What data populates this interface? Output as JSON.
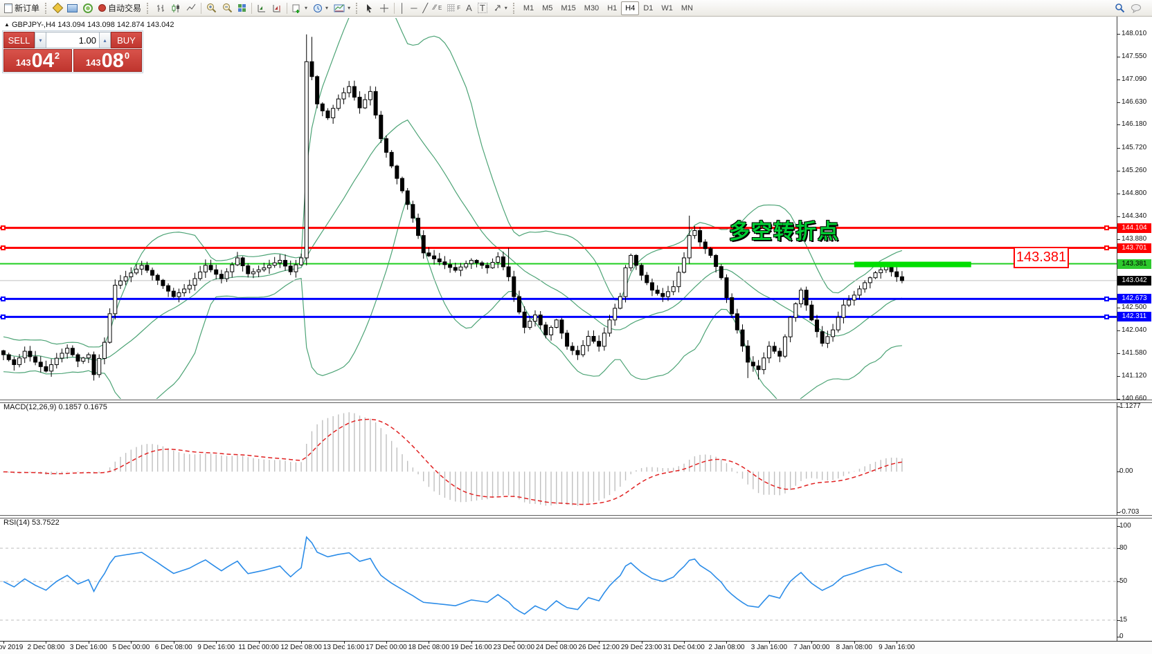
{
  "toolbar": {
    "new_order_label": "新订单",
    "autotrading_label": "自动交易",
    "timeframes": [
      "M1",
      "M5",
      "M15",
      "M30",
      "H1",
      "H4",
      "D1",
      "W1",
      "MN"
    ],
    "active_timeframe": "H4",
    "icon_names": [
      "new-order",
      "history",
      "chart-window",
      "signal",
      "autotrade",
      "bar-chart",
      "candle-chart",
      "line-chart",
      "zoom-in",
      "zoom-out",
      "tile-windows",
      "auto-scroll",
      "chart-shift",
      "add-indicator",
      "periods",
      "templates",
      "cursor",
      "crosshair",
      "vertical-line",
      "horizontal-line",
      "trendline",
      "fibo-channel",
      "fibo-grid",
      "text",
      "text-label",
      "arrows",
      "search",
      "chat"
    ],
    "tool_glyphs": {
      "vline": "│",
      "hline": "─",
      "trendline": "╱",
      "text_a": "A",
      "text_t": "T",
      "fibo_e": "E",
      "fibo_f": "F",
      "plus": "+",
      "dropdown": "▾",
      "spin_up": "▴",
      "spin_down": "▾"
    }
  },
  "symbol_header": {
    "collapse_icon": "▲",
    "symbol": "GBPJPY-,H4",
    "ohlc": "143.094 143.098 142.874 143.042"
  },
  "trade_panel": {
    "sell_label": "SELL",
    "buy_label": "BUY",
    "volume": "1.00",
    "sell_price_small": "143",
    "sell_price_big": "04",
    "sell_price_sup": "2",
    "buy_price_small": "143",
    "buy_price_big": "08",
    "buy_price_sup": "0"
  },
  "annotation": {
    "text": "多空转折点",
    "color": "#00cc33"
  },
  "price_callout": {
    "text": "143.381"
  },
  "macd_panel": {
    "name": "MACD(12,26,9)",
    "value_main": "0.1857",
    "value_signal": "0.1675",
    "scale_max": "1.1277",
    "scale_zero": "0.00",
    "scale_min": "-0.703"
  },
  "rsi_panel": {
    "name": "RSI(14)",
    "value": "53.7522",
    "scale": [
      "100",
      "80",
      "50",
      "15",
      "0"
    ]
  },
  "chart_data": {
    "type": "candlestick+indicators",
    "symbol": "GBPJPY",
    "timeframe": "H4",
    "bars_total": 170,
    "y_axis_ticks": [
      "148.010",
      "147.550",
      "147.090",
      "146.630",
      "146.180",
      "145.720",
      "145.260",
      "144.800",
      "144.340",
      "143.880",
      "142.500",
      "142.040",
      "141.580",
      "141.120",
      "140.660"
    ],
    "y_range": [
      140.5,
      148.25
    ],
    "close_anchors": [
      [
        0,
        141.55
      ],
      [
        2,
        141.35
      ],
      [
        4,
        141.62
      ],
      [
        6,
        141.4
      ],
      [
        8,
        141.22
      ],
      [
        10,
        141.48
      ],
      [
        12,
        141.68
      ],
      [
        14,
        141.42
      ],
      [
        16,
        141.55
      ],
      [
        17,
        141.15
      ],
      [
        19,
        141.8
      ],
      [
        21,
        142.95
      ],
      [
        23,
        143.12
      ],
      [
        26,
        143.35
      ],
      [
        29,
        143.05
      ],
      [
        32,
        142.72
      ],
      [
        35,
        142.95
      ],
      [
        38,
        143.35
      ],
      [
        41,
        143.08
      ],
      [
        44,
        143.5
      ],
      [
        46,
        143.18
      ],
      [
        49,
        143.3
      ],
      [
        52,
        143.45
      ],
      [
        54,
        143.22
      ],
      [
        56,
        143.5
      ],
      [
        57,
        147.45
      ],
      [
        58,
        147.15
      ],
      [
        59,
        146.6
      ],
      [
        61,
        146.32
      ],
      [
        63,
        146.7
      ],
      [
        65,
        146.95
      ],
      [
        67,
        146.52
      ],
      [
        69,
        146.85
      ],
      [
        71,
        145.9
      ],
      [
        73,
        145.35
      ],
      [
        75,
        144.85
      ],
      [
        77,
        144.3
      ],
      [
        79,
        143.6
      ],
      [
        82,
        143.42
      ],
      [
        85,
        143.25
      ],
      [
        88,
        143.45
      ],
      [
        91,
        143.3
      ],
      [
        93,
        143.52
      ],
      [
        95,
        143.12
      ],
      [
        96,
        142.72
      ],
      [
        98,
        142.1
      ],
      [
        100,
        142.35
      ],
      [
        102,
        141.95
      ],
      [
        104,
        142.25
      ],
      [
        106,
        141.72
      ],
      [
        108,
        141.55
      ],
      [
        110,
        141.92
      ],
      [
        112,
        141.72
      ],
      [
        114,
        142.25
      ],
      [
        116,
        142.72
      ],
      [
        117,
        143.3
      ],
      [
        118,
        143.55
      ],
      [
        120,
        143.15
      ],
      [
        122,
        142.85
      ],
      [
        124,
        142.72
      ],
      [
        126,
        142.92
      ],
      [
        128,
        143.5
      ],
      [
        129,
        143.95
      ],
      [
        130,
        144.05
      ],
      [
        131,
        143.82
      ],
      [
        133,
        143.55
      ],
      [
        135,
        143.1
      ],
      [
        136,
        142.7
      ],
      [
        138,
        142.05
      ],
      [
        140,
        141.4
      ],
      [
        142,
        141.25
      ],
      [
        144,
        141.72
      ],
      [
        146,
        141.52
      ],
      [
        148,
        142.3
      ],
      [
        150,
        142.85
      ],
      [
        152,
        142.25
      ],
      [
        154,
        141.78
      ],
      [
        156,
        142.05
      ],
      [
        158,
        142.55
      ],
      [
        160,
        142.75
      ],
      [
        162,
        143.0
      ],
      [
        164,
        143.2
      ],
      [
        166,
        143.32
      ],
      [
        168,
        143.12
      ],
      [
        169,
        143.042
      ]
    ],
    "wick_overrides": [
      [
        17,
        0,
        141.03
      ],
      [
        44,
        143.62,
        0
      ],
      [
        57,
        148.0,
        143.35
      ],
      [
        58,
        147.95,
        0
      ],
      [
        95,
        143.7,
        0
      ],
      [
        129,
        144.35,
        0
      ],
      [
        140,
        0,
        141.08
      ],
      [
        142,
        0,
        141.05
      ]
    ],
    "bollinger": {
      "period": 20,
      "deviation": 2,
      "color": "#4ca375"
    },
    "candle_colors": {
      "bull_fill": "#ffffff",
      "bear_fill": "#000000",
      "outline": "#000000"
    },
    "hlines": [
      {
        "price": 144.104,
        "color": "#ff0000",
        "width": 3,
        "axis_bg": "#ff0000",
        "axis_fg": "#ffffff",
        "label": "144.104",
        "handles": true
      },
      {
        "price": 143.701,
        "color": "#ff0000",
        "width": 3,
        "axis_bg": "#ff0000",
        "axis_fg": "#ffffff",
        "label": "143.701",
        "handles": true
      },
      {
        "price": 143.381,
        "color": "#1fce1f",
        "width": 2,
        "axis_bg": "#2dc92d",
        "axis_fg": "#000000",
        "label": "143.381",
        "handles": false
      },
      {
        "price": 142.673,
        "color": "#0000ff",
        "width": 3,
        "axis_bg": "#0000ff",
        "axis_fg": "#ffffff",
        "label": "142.673",
        "handles": true
      },
      {
        "price": 142.311,
        "color": "#0000ff",
        "width": 3,
        "axis_bg": "#0000ff",
        "axis_fg": "#ffffff",
        "label": "142.311",
        "handles": true
      }
    ],
    "current_price": {
      "price": 143.042,
      "line_color": "#c0c0c0",
      "axis_bg": "#000000",
      "axis_fg": "#ffffff",
      "label": "143.042"
    },
    "green_bar": {
      "start_bar": 160,
      "end_bar": 182,
      "price": 143.381,
      "color": "#00de00",
      "thickness": 8
    },
    "macd": {
      "fast": 12,
      "slow": 26,
      "signal": 9,
      "last_main": 0.1857,
      "last_signal": 0.1675,
      "scale_max": 1.1277,
      "scale_min": -0.703,
      "hist_color": "#bfbfbf",
      "signal_color": "#e02020"
    },
    "rsi": {
      "period": 14,
      "last": 53.7522,
      "color": "#2b8ce8",
      "levels": [
        80,
        50,
        15
      ],
      "scale": [
        100,
        80,
        50,
        15,
        0
      ]
    },
    "time_labels": [
      [
        "29 Nov 2019",
        0
      ],
      [
        "2 Dec 08:00",
        8
      ],
      [
        "3 Dec 16:00",
        16
      ],
      [
        "5 Dec 00:00",
        24
      ],
      [
        "6 Dec 08:00",
        32
      ],
      [
        "9 Dec 16:00",
        40
      ],
      [
        "11 Dec 00:00",
        48
      ],
      [
        "12 Dec 08:00",
        56
      ],
      [
        "13 Dec 16:00",
        64
      ],
      [
        "17 Dec 00:00",
        72
      ],
      [
        "18 Dec 08:00",
        80
      ],
      [
        "19 Dec 16:00",
        88
      ],
      [
        "23 Dec 00:00",
        96
      ],
      [
        "24 Dec 08:00",
        104
      ],
      [
        "26 Dec 12:00",
        112
      ],
      [
        "29 Dec 23:00",
        120
      ],
      [
        "31 Dec 04:00",
        128
      ],
      [
        "2 Jan 08:00",
        136
      ],
      [
        "3 Jan 16:00",
        144
      ],
      [
        "7 Jan 00:00",
        152
      ],
      [
        "8 Jan 08:00",
        160
      ],
      [
        "9 Jan 16:00",
        168
      ]
    ]
  }
}
